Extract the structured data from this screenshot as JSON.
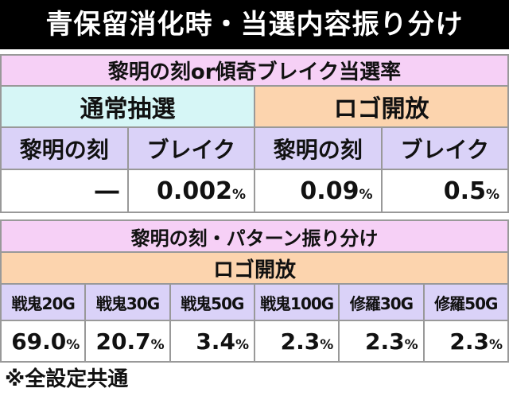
{
  "header": {
    "title": "青保留消化時・当選内容振り分け"
  },
  "table1": {
    "title": "黎明の刻or傾奇ブレイク当選率",
    "groups": [
      "通常抽選",
      "ロゴ開放"
    ],
    "columns": [
      "黎明の刻",
      "ブレイク",
      "黎明の刻",
      "ブレイク"
    ],
    "values": [
      {
        "number": "―",
        "unit": ""
      },
      {
        "number": "0.002",
        "unit": "%"
      },
      {
        "number": "0.09",
        "unit": "%"
      },
      {
        "number": "0.5",
        "unit": "%"
      }
    ]
  },
  "table2": {
    "title": "黎明の刻・パターン振り分け",
    "group": "ロゴ開放",
    "columns": [
      "戦鬼20G",
      "戦鬼30G",
      "戦鬼50G",
      "戦鬼100G",
      "修羅30G",
      "修羅50G"
    ],
    "values": [
      {
        "number": "69.0",
        "unit": "%"
      },
      {
        "number": "20.7",
        "unit": "%"
      },
      {
        "number": "3.4",
        "unit": "%"
      },
      {
        "number": "2.3",
        "unit": "%"
      },
      {
        "number": "2.3",
        "unit": "%"
      },
      {
        "number": "2.3",
        "unit": "%"
      }
    ]
  },
  "footnote": "※全設定共通"
}
